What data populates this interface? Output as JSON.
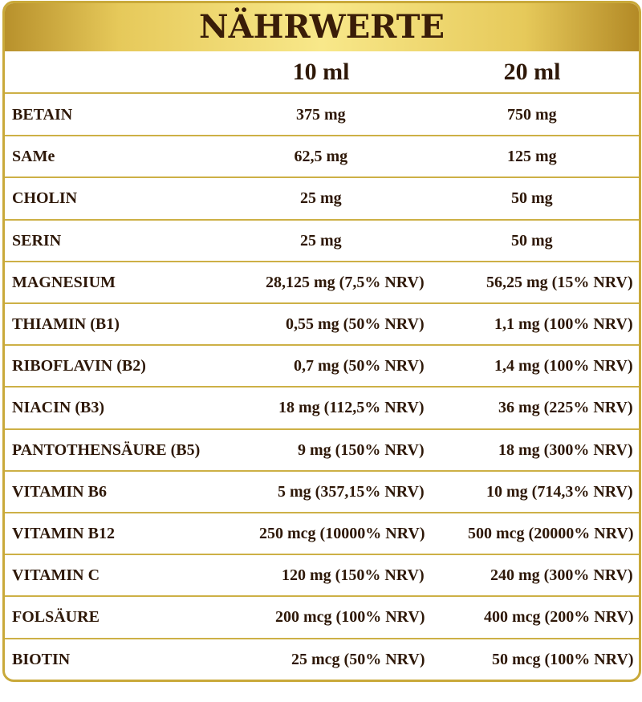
{
  "header": {
    "title": "NÄHRWERTE"
  },
  "table": {
    "columns": [
      "10 ml",
      "20 ml"
    ],
    "rows": [
      [
        "BETAIN",
        "375 mg",
        "750 mg"
      ],
      [
        "SAMe",
        "62,5 mg",
        "125 mg"
      ],
      [
        "CHOLIN",
        "25 mg",
        "50 mg"
      ],
      [
        "SERIN",
        "25 mg",
        "50 mg"
      ],
      [
        "MAGNESIUM",
        "28,125 mg (7,5% NRV)",
        "56,25 mg (15% NRV)"
      ],
      [
        "THIAMIN (B1)",
        "0,55 mg (50% NRV)",
        "1,1 mg (100% NRV)"
      ],
      [
        "RIBOFLAVIN (B2)",
        "0,7 mg (50% NRV)",
        "1,4 mg (100% NRV)"
      ],
      [
        "NIACIN (B3)",
        "18 mg (112,5% NRV)",
        "36 mg (225% NRV)"
      ],
      [
        "PANTOTHENSÄURE (B5)",
        "9 mg (150% NRV)",
        "18 mg (300% NRV)"
      ],
      [
        "VITAMIN B6",
        "5 mg (357,15% NRV)",
        "10 mg (714,3% NRV)"
      ],
      [
        "VITAMIN B12",
        "250 mcg (10000% NRV)",
        "500 mcg (20000% NRV)"
      ],
      [
        "VITAMIN C",
        "120 mg (150% NRV)",
        "240 mg (300% NRV)"
      ],
      [
        "FOLSÄURE",
        "200 mcg (100% NRV)",
        "400 mcg (200% NRV)"
      ],
      [
        "BIOTIN",
        "25 mcg (50% NRV)",
        "50 mcg (100% NRV)"
      ]
    ]
  }
}
